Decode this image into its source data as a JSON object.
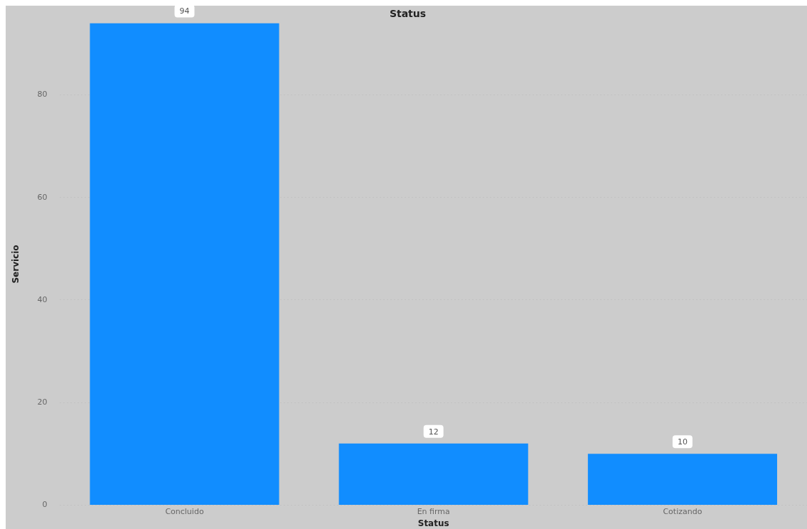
{
  "chart_data": {
    "type": "bar",
    "title": "Status",
    "xlabel": "Status",
    "ylabel": "Servicio",
    "categories": [
      "Concluido",
      "En firma",
      "Cotizando"
    ],
    "values": [
      94,
      12,
      10
    ],
    "color": "#118dff",
    "ylim": [
      0,
      94
    ],
    "yticks": [
      0,
      20,
      40,
      60,
      80
    ],
    "grid": "y",
    "data_labels": true
  }
}
